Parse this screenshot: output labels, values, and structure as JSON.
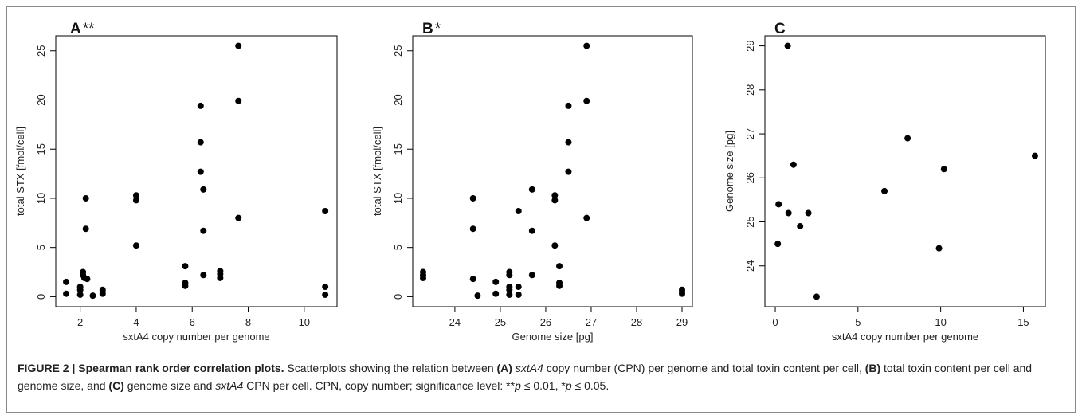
{
  "chart_data": [
    {
      "type": "scatter",
      "panel": "A",
      "significance": "**",
      "xlabel": "sxtA4 copy number per genome",
      "ylabel": "total STX [fmol/cell]",
      "xlim": [
        1.5,
        10.8
      ],
      "ylim": [
        0,
        25.5
      ],
      "xticks": [
        2,
        4,
        6,
        8,
        10
      ],
      "yticks": [
        0,
        5,
        10,
        15,
        20,
        25
      ],
      "points": [
        [
          1.5,
          1.5
        ],
        [
          1.5,
          0.3
        ],
        [
          2.0,
          1.0
        ],
        [
          2.0,
          0.7
        ],
        [
          2.0,
          0.2
        ],
        [
          2.1,
          2.5
        ],
        [
          2.1,
          2.2
        ],
        [
          2.15,
          1.9
        ],
        [
          2.2,
          10.0
        ],
        [
          2.2,
          6.9
        ],
        [
          2.25,
          1.8
        ],
        [
          2.45,
          0.1
        ],
        [
          2.8,
          0.7
        ],
        [
          2.8,
          0.5
        ],
        [
          2.8,
          0.3
        ],
        [
          4.0,
          10.3
        ],
        [
          4.0,
          9.8
        ],
        [
          4.0,
          5.2
        ],
        [
          5.75,
          3.1
        ],
        [
          5.75,
          1.4
        ],
        [
          5.75,
          1.1
        ],
        [
          6.3,
          19.4
        ],
        [
          6.3,
          15.7
        ],
        [
          6.3,
          12.7
        ],
        [
          6.4,
          10.9
        ],
        [
          6.4,
          6.7
        ],
        [
          6.4,
          2.2
        ],
        [
          7.0,
          2.6
        ],
        [
          7.0,
          2.3
        ],
        [
          7.0,
          1.9
        ],
        [
          7.65,
          25.5
        ],
        [
          7.65,
          19.9
        ],
        [
          7.65,
          8.0
        ],
        [
          10.75,
          8.7
        ],
        [
          10.75,
          1.0
        ],
        [
          10.75,
          0.2
        ]
      ]
    },
    {
      "type": "scatter",
      "panel": "B",
      "significance": "*",
      "xlabel": "Genome size [pg]",
      "ylabel": "total STX [fmol/cell]",
      "xlim": [
        23.3,
        29.0
      ],
      "ylim": [
        0,
        25.5
      ],
      "xticks": [
        24,
        25,
        26,
        27,
        28,
        29
      ],
      "yticks": [
        0,
        5,
        10,
        15,
        20,
        25
      ],
      "points": [
        [
          23.3,
          2.5
        ],
        [
          23.3,
          2.2
        ],
        [
          23.3,
          1.9
        ],
        [
          24.4,
          10.0
        ],
        [
          24.4,
          6.9
        ],
        [
          24.4,
          1.8
        ],
        [
          24.5,
          0.1
        ],
        [
          24.9,
          1.5
        ],
        [
          24.9,
          0.3
        ],
        [
          25.2,
          2.5
        ],
        [
          25.2,
          2.2
        ],
        [
          25.2,
          1.0
        ],
        [
          25.2,
          0.7
        ],
        [
          25.2,
          0.2
        ],
        [
          25.4,
          8.7
        ],
        [
          25.4,
          1.0
        ],
        [
          25.4,
          0.2
        ],
        [
          25.7,
          10.9
        ],
        [
          25.7,
          6.7
        ],
        [
          25.7,
          2.2
        ],
        [
          26.2,
          10.3
        ],
        [
          26.2,
          9.8
        ],
        [
          26.2,
          5.2
        ],
        [
          26.3,
          3.1
        ],
        [
          26.3,
          1.4
        ],
        [
          26.3,
          1.1
        ],
        [
          26.5,
          19.4
        ],
        [
          26.5,
          15.7
        ],
        [
          26.5,
          12.7
        ],
        [
          26.9,
          25.5
        ],
        [
          26.9,
          19.9
        ],
        [
          26.9,
          8.0
        ],
        [
          29.0,
          0.7
        ],
        [
          29.0,
          0.5
        ],
        [
          29.0,
          0.3
        ]
      ]
    },
    {
      "type": "scatter",
      "panel": "C",
      "significance": "",
      "xlabel": "sxtA4 copy number per genome",
      "ylabel": "Genome size [pg]",
      "xlim": [
        0.0,
        15.7
      ],
      "ylim": [
        23.3,
        29.0
      ],
      "xticks": [
        0,
        5,
        10,
        15
      ],
      "yticks": [
        24,
        25,
        26,
        27,
        28,
        29
      ],
      "points": [
        [
          0.2,
          25.4
        ],
        [
          0.15,
          24.5
        ],
        [
          0.75,
          29.0
        ],
        [
          0.8,
          25.2
        ],
        [
          1.1,
          26.3
        ],
        [
          1.5,
          24.9
        ],
        [
          2.0,
          25.2
        ],
        [
          2.5,
          23.3
        ],
        [
          6.6,
          25.7
        ],
        [
          8.0,
          26.9
        ],
        [
          9.9,
          24.4
        ],
        [
          10.2,
          26.2
        ],
        [
          15.7,
          26.5
        ]
      ]
    }
  ],
  "caption": {
    "label": "FIGURE 2 | Spearman rank order correlation plots.",
    "t1": " Scatterplots showing the relation between ",
    "a": "(A)",
    "gene1": " sxtA4",
    "t2": " copy number (CPN) per genome and total toxin content per cell, ",
    "b": "(B)",
    "t3": " total toxin content per cell and genome size, and ",
    "c": "(C)",
    "t4": " genome size and ",
    "gene2": "sxtA4",
    "t5": " CPN per cell. CPN, copy number; significance level: **",
    "p1": "p",
    "t6": " ≤ 0.01, *",
    "p2": "p",
    "t7": " ≤ 0.05."
  }
}
